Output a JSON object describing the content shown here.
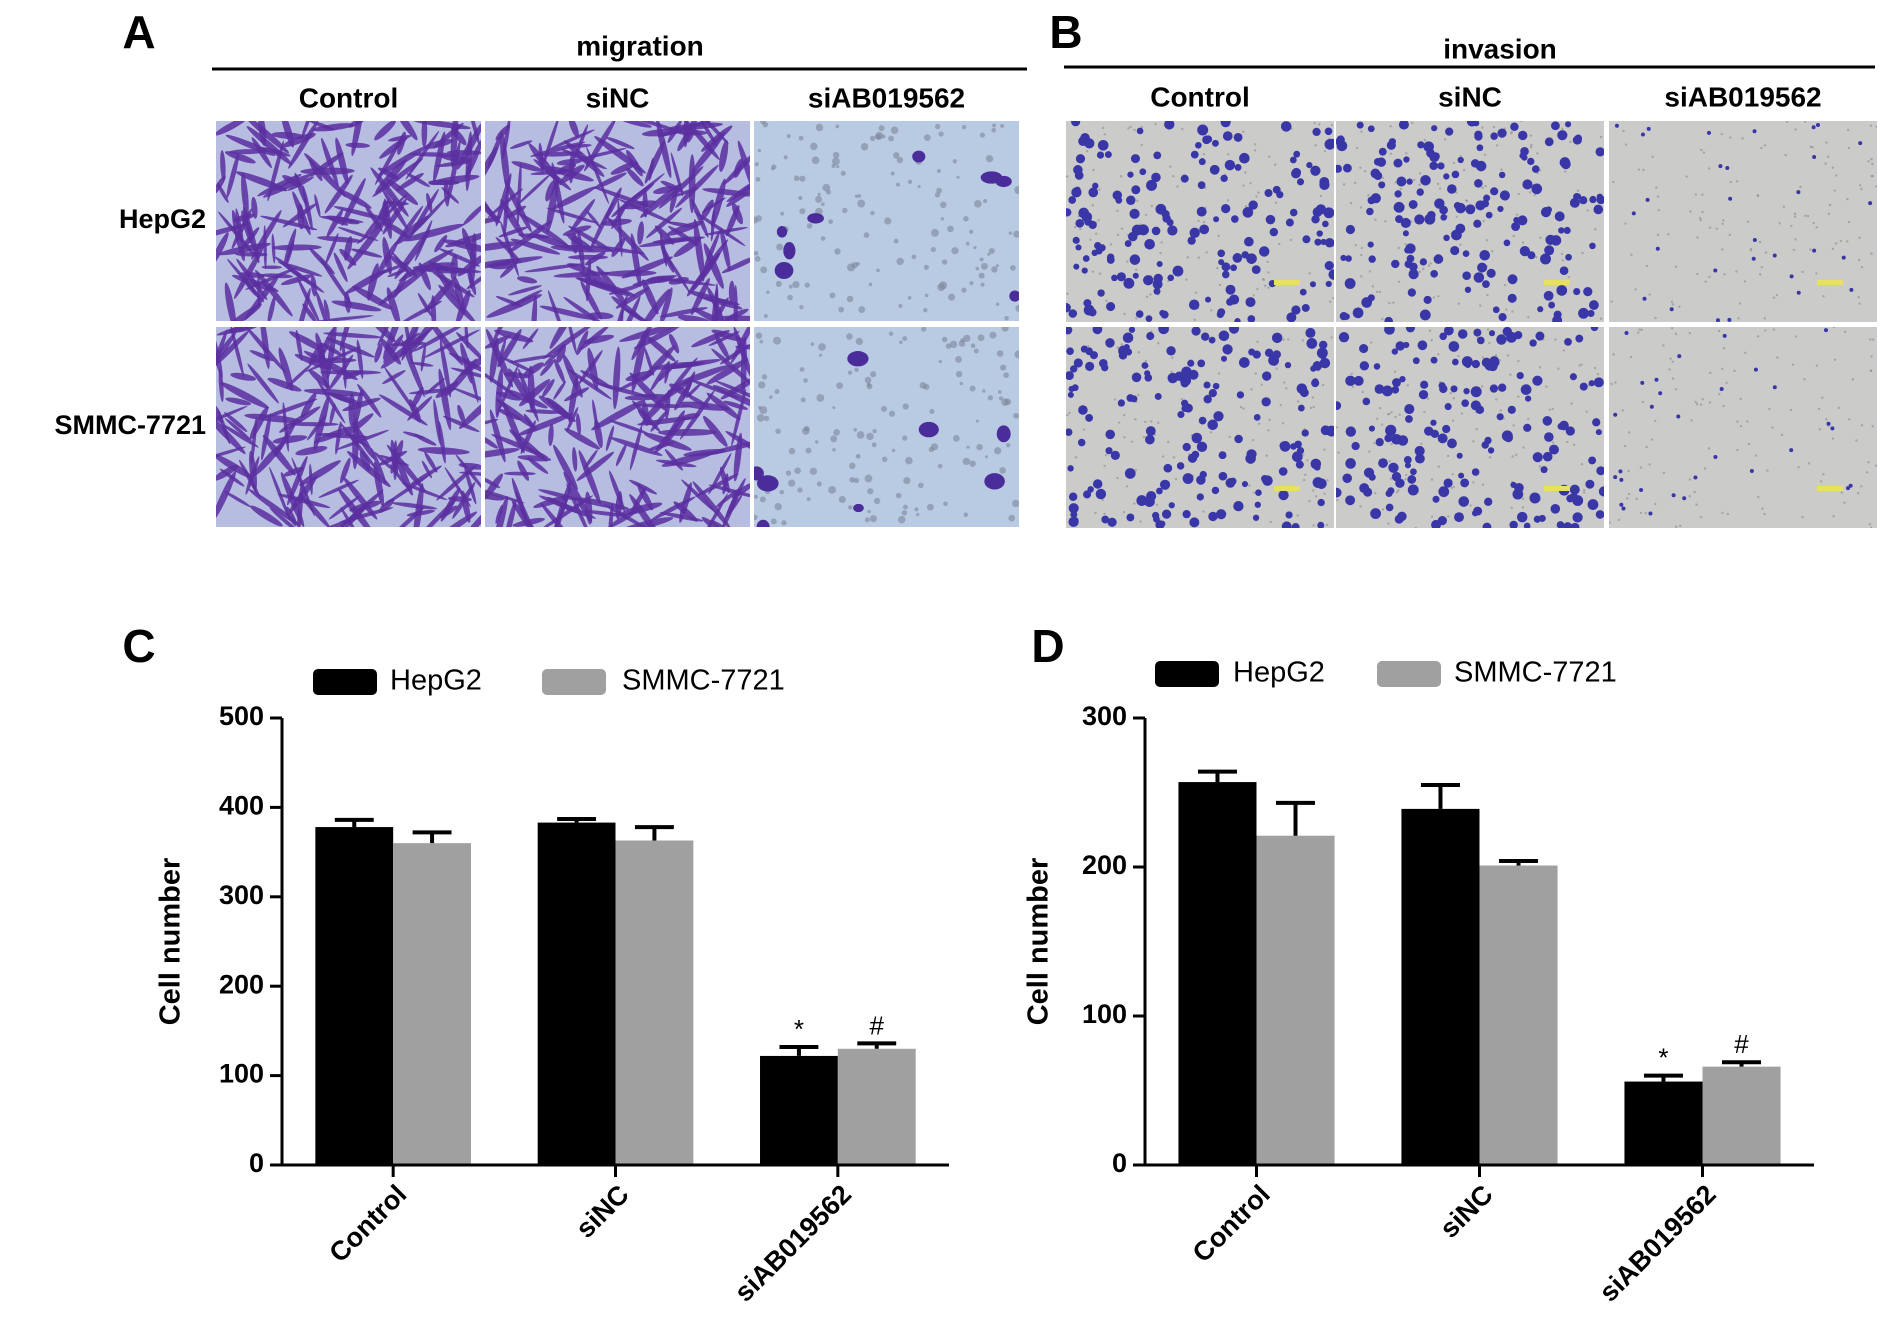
{
  "panels": [
    {
      "label": "A",
      "title": "migration",
      "columns": [
        "Control",
        "siNC",
        "siAB019562"
      ],
      "rows": [
        "HepG2",
        "SMMC-7721"
      ]
    },
    {
      "label": "B",
      "title": "invasion",
      "columns": [
        "Control",
        "siNC",
        "siAB019562"
      ]
    }
  ],
  "chart_data": [
    {
      "type": "bar",
      "panel_label": "C",
      "y_label": "Cell number",
      "categories": [
        "Control",
        "siNC",
        "siAB019562"
      ],
      "series": [
        {
          "name": "HepG2",
          "color": "#000000",
          "values": [
            378,
            383,
            122
          ],
          "errors": [
            8,
            4,
            10
          ],
          "markers": [
            null,
            null,
            "*"
          ]
        },
        {
          "name": "SMMC-7721",
          "color": "#a0a0a0",
          "values": [
            360,
            363,
            130
          ],
          "errors": [
            12,
            15,
            6
          ],
          "markers": [
            null,
            null,
            "#"
          ]
        }
      ],
      "ylim": [
        0,
        500
      ],
      "yticks": [
        0,
        100,
        200,
        300,
        400,
        500
      ]
    },
    {
      "type": "bar",
      "panel_label": "D",
      "y_label": "Cell number",
      "categories": [
        "Control",
        "siNC",
        "siAB019562"
      ],
      "series": [
        {
          "name": "HepG2",
          "color": "#000000",
          "values": [
            257,
            239,
            56
          ],
          "errors": [
            7,
            16,
            4
          ],
          "markers": [
            null,
            null,
            "*"
          ]
        },
        {
          "name": "SMMC-7721",
          "color": "#a0a0a0",
          "values": [
            221,
            201,
            66
          ],
          "errors": [
            22,
            3,
            3
          ],
          "markers": [
            null,
            null,
            "#"
          ]
        }
      ],
      "ylim": [
        0,
        300
      ],
      "yticks": [
        0,
        100,
        200,
        300
      ]
    }
  ]
}
